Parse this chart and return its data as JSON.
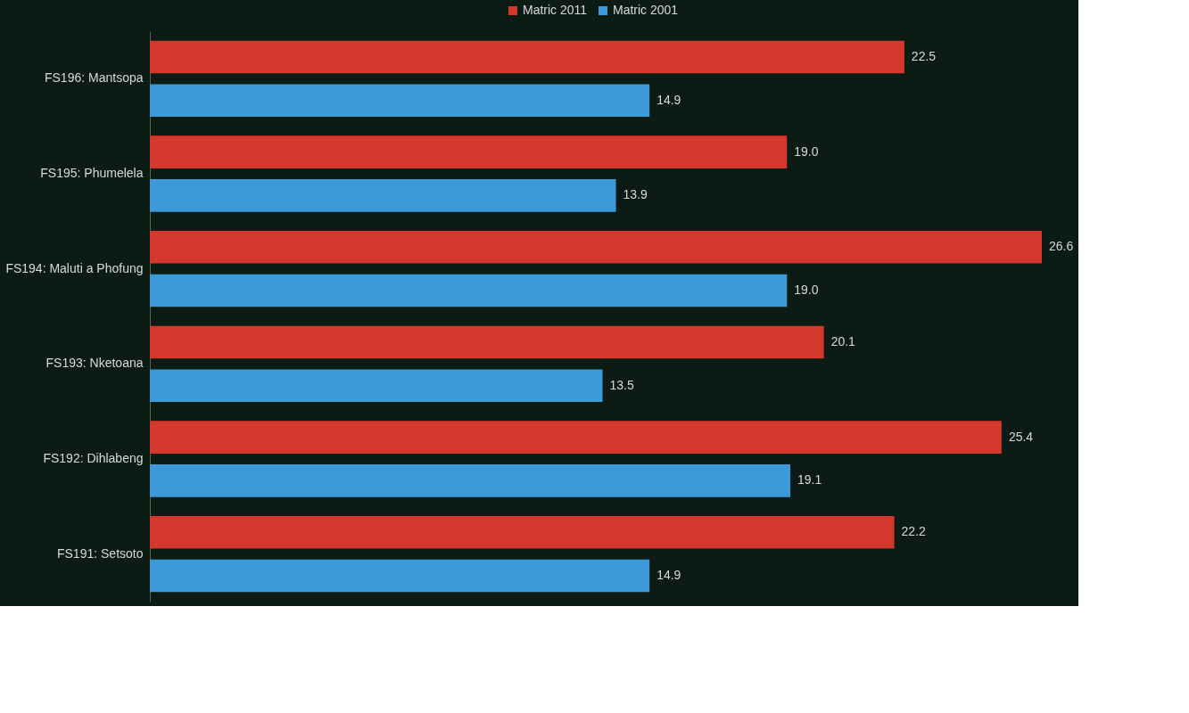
{
  "chart_data": {
    "type": "bar",
    "orientation": "horizontal",
    "legend": "top",
    "categories": [
      "FS196: Mantsopa",
      "FS195: Phumelela",
      "FS194: Maluti a Phofung",
      "FS193: Nketoana",
      "FS192: Dihlabeng",
      "FS191: Setsoto"
    ],
    "series": [
      {
        "name": "Matric 2011",
        "color": "#d2382c",
        "values": [
          22.5,
          19.0,
          26.6,
          20.1,
          25.4,
          22.2
        ],
        "value_labels": [
          "22.5",
          "19.0",
          "26.6",
          "20.1",
          "25.4",
          "22.2"
        ]
      },
      {
        "name": "Matric 2001",
        "color": "#3c9ad8",
        "values": [
          14.9,
          13.9,
          19.0,
          13.5,
          19.1,
          14.9
        ],
        "value_labels": [
          "14.9",
          "13.9",
          "19.0",
          "13.5",
          "19.1",
          "14.9"
        ]
      }
    ]
  }
}
